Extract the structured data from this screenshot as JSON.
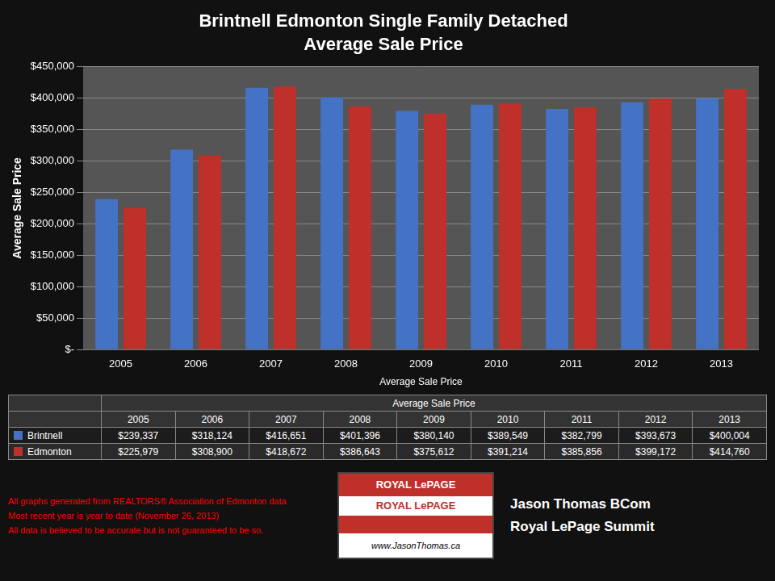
{
  "chart_data": {
    "type": "bar",
    "title": "Brintnell Edmonton Single Family Detached",
    "subtitle": "Average Sale Price",
    "categories": [
      "2005",
      "2006",
      "2007",
      "2008",
      "2009",
      "2010",
      "2011",
      "2012",
      "2013"
    ],
    "series": [
      {
        "name": "Brintnell",
        "color": "#4472C4",
        "values": [
          239337,
          318124,
          416651,
          401396,
          380140,
          389549,
          382799,
          393673,
          400004
        ],
        "value_labels": [
          "$239,337",
          "$318,124",
          "$416,651",
          "$401,396",
          "$380,140",
          "$389,549",
          "$382,799",
          "$393,673",
          "$400,004"
        ]
      },
      {
        "name": "Edmonton",
        "color": "#C0302A",
        "values": [
          225979,
          308900,
          418672,
          386643,
          375612,
          391214,
          385856,
          399172,
          414760
        ],
        "value_labels": [
          "$225,979",
          "$308,900",
          "$418,672",
          "$386,643",
          "$375,612",
          "$391,214",
          "$385,856",
          "$399,172",
          "$414,760"
        ]
      }
    ],
    "xlabel": "Average Sale Price",
    "ylabel": "Average Sale Price",
    "ylim": [
      0,
      450000
    ],
    "yticks": [
      {
        "value": 0,
        "label": "$-"
      },
      {
        "value": 50000,
        "label": "$50,000"
      },
      {
        "value": 100000,
        "label": "$100,000"
      },
      {
        "value": 150000,
        "label": "$150,000"
      },
      {
        "value": 200000,
        "label": "$200,000"
      },
      {
        "value": 250000,
        "label": "$250,000"
      },
      {
        "value": 300000,
        "label": "$300,000"
      },
      {
        "value": 350000,
        "label": "$350,000"
      },
      {
        "value": 400000,
        "label": "$400,000"
      },
      {
        "value": 450000,
        "label": "$450,000"
      }
    ],
    "grid": true,
    "annotations": [
      "Average Sale Price",
      "ROYAL LePAGE",
      "ROYAL LePAGE",
      "www.JasonThomas.ca",
      "All graphs generated from REALTORS® Association of Edmonton data",
      "Most recent year is year to date (November 26, 2013)",
      "All data is believed to be accurate but is not guaranteed to be so.",
      "Jason Thomas BCom",
      "Royal LePage Summit"
    ]
  }
}
